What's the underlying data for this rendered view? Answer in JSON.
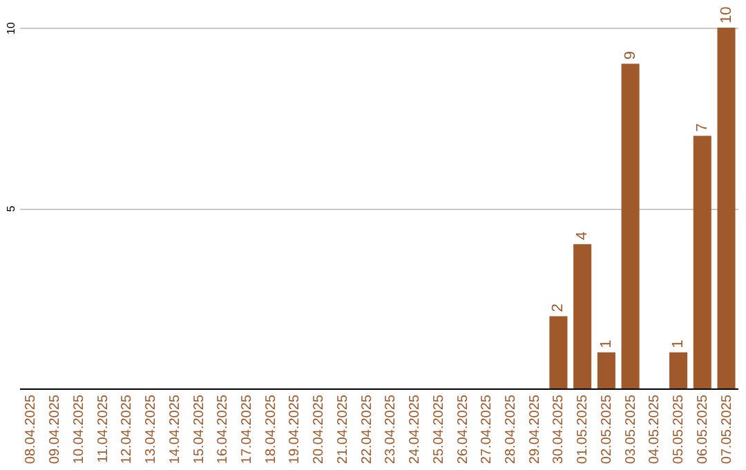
{
  "chart_data": {
    "type": "bar",
    "categories": [
      "08.04.2025",
      "09.04.2025",
      "10.04.2025",
      "11.04.2025",
      "12.04.2025",
      "13.04.2025",
      "14.04.2025",
      "15.04.2025",
      "16.04.2025",
      "17.04.2025",
      "18.04.2025",
      "19.04.2025",
      "20.04.2025",
      "21.04.2025",
      "22.04.2025",
      "23.04.2025",
      "24.04.2025",
      "25.04.2025",
      "26.04.2025",
      "27.04.2025",
      "28.04.2025",
      "29.04.2025",
      "30.04.2025",
      "01.05.2025",
      "02.05.2025",
      "03.05.2025",
      "04.05.2025",
      "05.05.2025",
      "06.05.2025",
      "07.05.2025"
    ],
    "values": [
      0,
      0,
      0,
      0,
      0,
      0,
      0,
      0,
      0,
      0,
      0,
      0,
      0,
      0,
      0,
      0,
      0,
      0,
      0,
      0,
      0,
      0,
      2,
      4,
      1,
      9,
      0,
      1,
      7,
      10
    ],
    "value_labels": [
      null,
      null,
      null,
      null,
      null,
      null,
      null,
      null,
      null,
      null,
      null,
      null,
      null,
      null,
      null,
      null,
      null,
      null,
      null,
      null,
      null,
      null,
      "2",
      "4",
      "1",
      "9",
      null,
      "1",
      "7",
      "10"
    ],
    "color": "#a0592b",
    "ylim": [
      0,
      10
    ],
    "yticks": [
      5,
      10
    ],
    "grid": "y"
  }
}
